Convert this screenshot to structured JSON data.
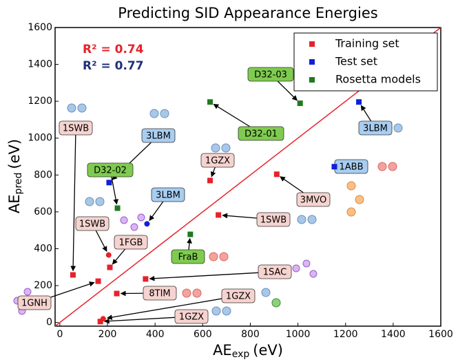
{
  "chart_data": {
    "type": "scatter",
    "title": "Predicting SID Appearance Energies",
    "xlabel": "AE",
    "xlabel_sub": "exp",
    "xlabel_unit": "(eV)",
    "ylabel": "AE",
    "ylabel_sub": "pred",
    "ylabel_unit": "(eV)",
    "xlim": [
      -20,
      1600
    ],
    "ylim": [
      -20,
      1600
    ],
    "xticks": [
      0,
      200,
      400,
      600,
      800,
      1000,
      1200,
      1400,
      1600
    ],
    "yticks": [
      0,
      200,
      400,
      600,
      800,
      1000,
      1200,
      1400,
      1600
    ],
    "diagonal_color": "#e8212a",
    "legend": "upper right",
    "annotations": [
      {
        "text": "R² = 0.74",
        "color": "#e8212a"
      },
      {
        "text": "R² = 0.77",
        "color": "#1f2f7a"
      }
    ],
    "series": [
      {
        "name": "Training set",
        "color": "#e8212a",
        "label_fill": "#f6d3cf",
        "x": [
          55,
          161,
          210,
          205,
          631,
          666,
          911,
          360,
          239,
          182,
          170
        ],
        "values": [
          258,
          224,
          299,
          366,
          770,
          583,
          804,
          236,
          157,
          20,
          5
        ],
        "markers": [
          "s",
          "s",
          "s",
          "o",
          "s",
          "s",
          "s",
          "s",
          "s",
          "o",
          "s"
        ],
        "labels": [
          "1SWB",
          "1GNH",
          "1FGB",
          "1SWB",
          "1GZX",
          "1SWB",
          "3MVO",
          "1SAC",
          "8TIM",
          "1GZX",
          "1GZX"
        ]
      },
      {
        "name": "Test set",
        "color": "#1020d8",
        "label_fill": "#a8cdf0",
        "x": [
          207,
          1153,
          1256,
          366
        ],
        "values": [
          759,
          845,
          1196,
          535
        ],
        "markers": [
          "s",
          "s",
          "s",
          "o"
        ],
        "labels": [
          "3LBM",
          "1ABB",
          "3LBM",
          "3LBM"
        ]
      },
      {
        "name": "Rosetta models",
        "color": "#1e7a1e",
        "label_fill": "#7fcb4f",
        "x": [
          631,
          1009,
          242,
          548
        ],
        "values": [
          1196,
          1189,
          620,
          478
        ],
        "markers": [
          "s",
          "s",
          "s",
          "s"
        ],
        "labels": [
          "D32-01",
          "D32-03",
          "D32-02",
          "FraB"
        ]
      }
    ]
  }
}
